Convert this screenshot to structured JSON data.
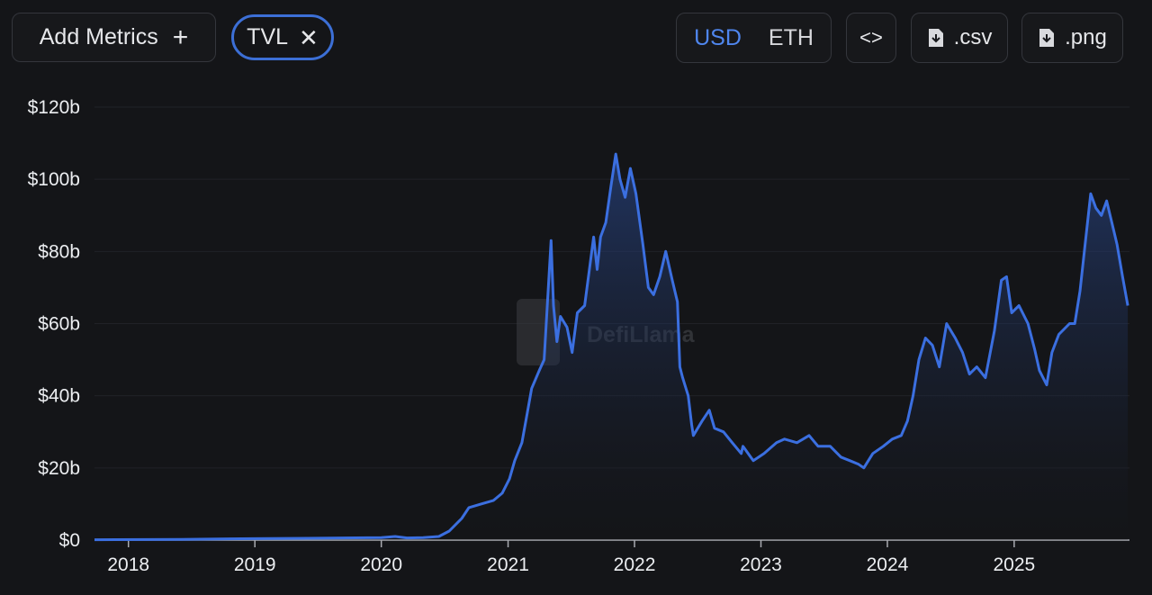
{
  "toolbar": {
    "add_metrics_label": "Add Metrics",
    "add_icon": "plus-icon",
    "metric_chip_label": "TVL",
    "remove_icon": "close-icon",
    "currency_options": [
      "USD",
      "ETH"
    ],
    "currency_selected": "USD",
    "embed_icon": "code-icon",
    "csv_label": ".csv",
    "png_label": ".png",
    "download_icon": "file-download-icon"
  },
  "watermark": {
    "text": "DefiLlama"
  },
  "colors": {
    "line": "#3b6fe0",
    "accent": "#4f86ee",
    "background": "#141518"
  },
  "chart_data": {
    "type": "area",
    "title": "",
    "xlabel": "",
    "ylabel": "",
    "x_ticks": [
      "2018",
      "2019",
      "2020",
      "2021",
      "2022",
      "2023",
      "2024",
      "2025"
    ],
    "y_ticks": [
      "$0",
      "$20b",
      "$40b",
      "$60b",
      "$80b",
      "$100b",
      "$120b"
    ],
    "ylim": [
      0,
      120
    ],
    "xlim": [
      "2017-09-25",
      "2025-11-30"
    ],
    "grid": true,
    "series": [
      {
        "name": "TVL",
        "x": [
          "2017-09-25",
          "2018-06-01",
          "2019-01-01",
          "2019-06-01",
          "2020-01-01",
          "2020-02-10",
          "2020-03-15",
          "2020-05-01",
          "2020-06-15",
          "2020-07-15",
          "2020-08-20",
          "2020-09-10",
          "2020-10-15",
          "2020-11-20",
          "2020-12-15",
          "2021-01-05",
          "2021-01-20",
          "2021-02-10",
          "2021-02-25",
          "2021-03-10",
          "2021-04-01",
          "2021-04-15",
          "2021-05-05",
          "2021-05-12",
          "2021-05-22",
          "2021-06-01",
          "2021-06-20",
          "2021-07-05",
          "2021-07-20",
          "2021-08-10",
          "2021-08-25",
          "2021-09-05",
          "2021-09-15",
          "2021-09-25",
          "2021-10-10",
          "2021-10-25",
          "2021-11-08",
          "2021-11-20",
          "2021-12-05",
          "2021-12-20",
          "2022-01-05",
          "2022-01-25",
          "2022-02-10",
          "2022-02-25",
          "2022-03-15",
          "2022-04-01",
          "2022-04-20",
          "2022-05-05",
          "2022-05-12",
          "2022-05-20",
          "2022-06-05",
          "2022-06-15",
          "2022-06-20",
          "2022-07-15",
          "2022-08-05",
          "2022-08-20",
          "2022-09-15",
          "2022-10-10",
          "2022-11-05",
          "2022-11-10",
          "2022-12-10",
          "2023-01-10",
          "2023-02-15",
          "2023-03-10",
          "2023-04-15",
          "2023-05-20",
          "2023-06-15",
          "2023-07-20",
          "2023-08-20",
          "2023-09-15",
          "2023-10-10",
          "2023-10-25",
          "2023-11-20",
          "2023-12-20",
          "2024-01-15",
          "2024-02-10",
          "2024-02-28",
          "2024-03-15",
          "2024-04-01",
          "2024-04-20",
          "2024-05-10",
          "2024-05-30",
          "2024-06-20",
          "2024-07-15",
          "2024-08-05",
          "2024-08-25",
          "2024-09-15",
          "2024-10-10",
          "2024-11-05",
          "2024-11-25",
          "2024-12-10",
          "2024-12-25",
          "2025-01-15",
          "2025-02-10",
          "2025-03-01",
          "2025-03-15",
          "2025-04-05",
          "2025-04-20",
          "2025-05-10",
          "2025-06-10",
          "2025-06-25",
          "2025-07-10",
          "2025-07-25",
          "2025-08-10",
          "2025-08-25",
          "2025-09-10",
          "2025-09-25",
          "2025-10-10",
          "2025-10-25",
          "2025-11-10",
          "2025-11-25"
        ],
        "values": [
          0.1,
          0.2,
          0.4,
          0.5,
          0.7,
          1.0,
          0.6,
          0.7,
          1.0,
          2.5,
          6,
          9,
          10,
          11,
          13,
          17,
          22,
          27,
          35,
          42,
          47,
          50,
          83,
          65,
          55,
          62,
          59,
          52,
          63,
          65,
          76,
          84,
          75,
          84,
          88,
          98,
          107,
          100,
          95,
          103,
          96,
          82,
          70,
          68,
          73,
          80,
          72,
          66,
          48,
          45,
          40,
          32,
          29,
          33,
          36,
          31,
          30,
          27,
          24,
          26,
          22,
          24,
          27,
          28,
          27,
          29,
          26,
          26,
          23,
          22,
          21,
          20,
          24,
          26,
          28,
          29,
          33,
          40,
          50,
          56,
          54,
          48,
          60,
          56,
          52,
          46,
          48,
          45,
          58,
          72,
          73,
          63,
          65,
          60,
          53,
          47,
          43,
          52,
          57,
          60,
          60,
          69,
          82,
          96,
          92,
          90,
          94,
          88,
          82,
          73,
          65
        ]
      }
    ]
  }
}
